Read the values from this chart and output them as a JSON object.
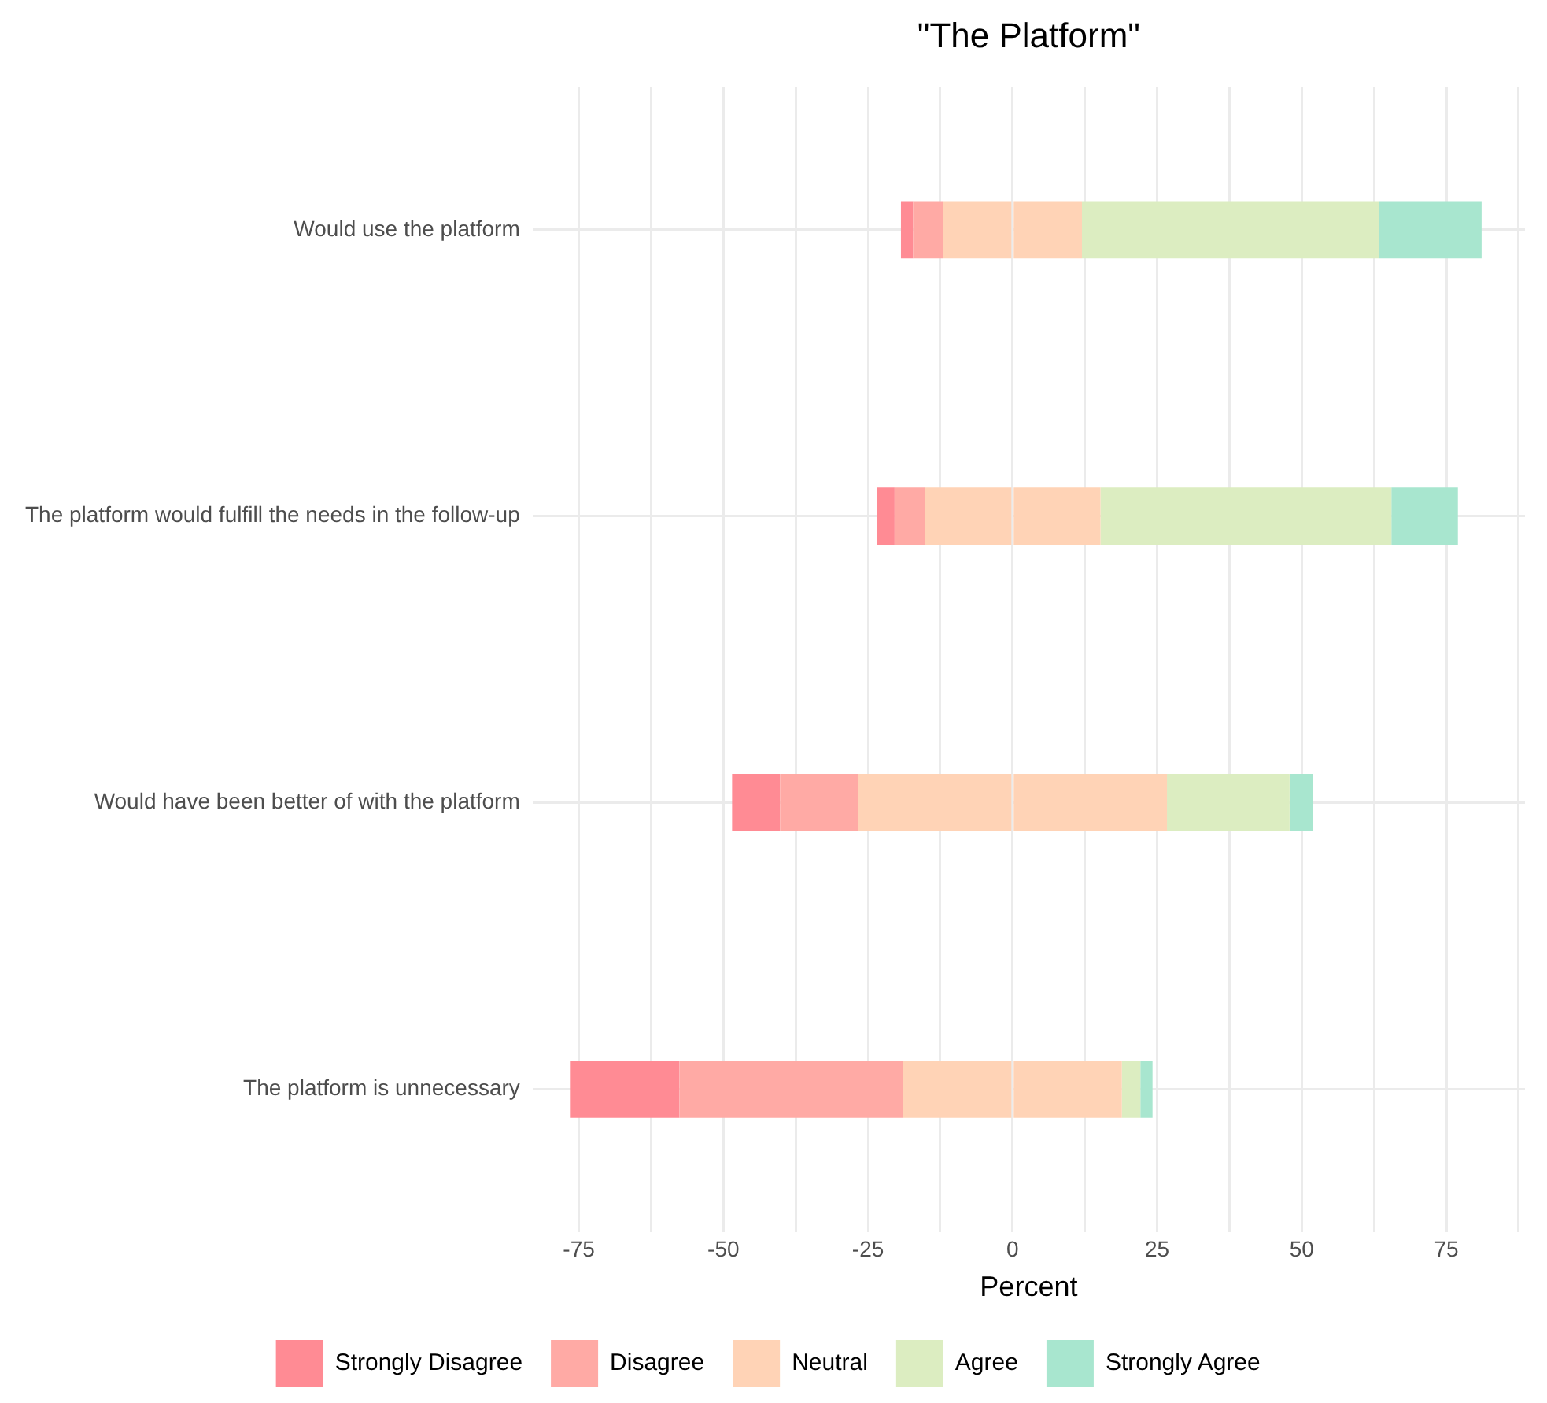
{
  "chart_data": {
    "type": "bar",
    "title": "\"The Platform\"",
    "xlabel": "Percent",
    "orientation": "horizontal",
    "stacked": true,
    "categories": [
      "Would use the platform",
      "The platform would fulfill the needs in the follow-up",
      "Would have been better of with the platform",
      "The platform is unnecessary"
    ],
    "series": [
      {
        "color": "#ffd3b6",
        "values": [
          -12.0,
          -15.2,
          -26.7,
          -18.9
        ]
      },
      {
        "name": "Disagree",
        "color": "#ffaaa5",
        "values": [
          -5.2,
          -5.2,
          -13.5,
          -38.7
        ]
      },
      {
        "name": "Strongly Disagree",
        "color": "#ff8b94",
        "values": [
          -2.1,
          -3.1,
          -8.3,
          -18.8
        ]
      },
      {
        "name": "Neutral",
        "color": "#ffd3b6",
        "values": [
          12.0,
          15.2,
          26.7,
          18.9
        ]
      },
      {
        "name": "Agree",
        "color": "#dcedc1",
        "values": [
          51.4,
          50.3,
          21.2,
          3.2
        ]
      },
      {
        "name": "Strongly Agree",
        "color": "#a8e6cf",
        "values": [
          17.7,
          11.5,
          4.0,
          2.1
        ]
      }
    ],
    "xlim": [
      -83,
      88.6
    ],
    "xticks": [
      -75,
      {
        "value": -62.5,
        "label": null
      },
      -50,
      {
        "value": -37.5,
        "label": null
      },
      -25,
      {
        "value": -12.5,
        "label": null
      },
      0,
      {
        "value": 12.5,
        "label": null
      },
      25,
      {
        "value": 37.5,
        "label": null
      },
      50,
      {
        "value": 62.5,
        "label": null
      },
      75,
      {
        "value": 87.5,
        "label": null
      }
    ],
    "grid": true,
    "legend": "bottom"
  }
}
